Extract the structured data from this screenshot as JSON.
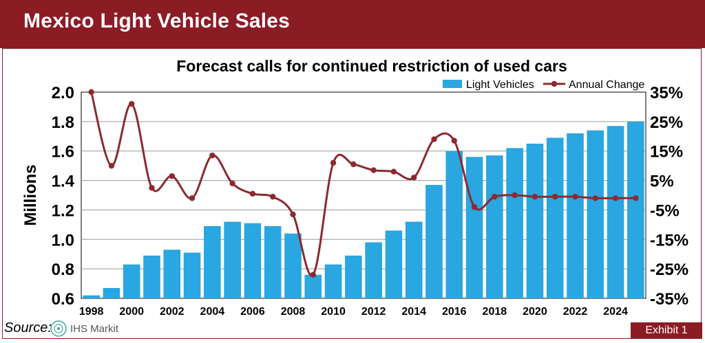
{
  "header": {
    "title": "Mexico Light Vehicle Sales"
  },
  "footer": {
    "source_label": "Source:",
    "logo_text": "IHS Markit",
    "exhibit_label": "Exhibit 1"
  },
  "colors": {
    "brand": "#8c1c24",
    "bars": "#2aa6e0",
    "line": "#8c2a30"
  },
  "chart_data": {
    "type": "bar",
    "title": "Forecast calls for continued restriction of used cars",
    "ylabel": "Millions",
    "xlabel": "",
    "x": [
      1998,
      1999,
      2000,
      2001,
      2002,
      2003,
      2004,
      2005,
      2006,
      2007,
      2008,
      2009,
      2010,
      2011,
      2012,
      2013,
      2014,
      2015,
      2016,
      2017,
      2018,
      2019,
      2020,
      2021,
      2022,
      2023,
      2024,
      2025
    ],
    "x_tick_labels": [
      "1998",
      "2000",
      "2002",
      "2004",
      "2006",
      "2008",
      "2010",
      "2012",
      "2014",
      "2016",
      "2018",
      "2020",
      "2022",
      "2024"
    ],
    "ylim": [
      0.6,
      2.0
    ],
    "y_tick_labels": [
      "0.6",
      "0.8",
      "1.0",
      "1.2",
      "1.4",
      "1.6",
      "1.8",
      "2.0"
    ],
    "y2lim": [
      -35,
      35
    ],
    "y2_tick_labels": [
      "-35%",
      "-25%",
      "-15%",
      "-5%",
      "5%",
      "15%",
      "25%",
      "35%"
    ],
    "grid": true,
    "legend_position": "top-right",
    "series": [
      {
        "name": "Light Vehicles",
        "kind": "bar",
        "axis": "left",
        "values": [
          0.62,
          0.67,
          0.83,
          0.89,
          0.93,
          0.91,
          1.09,
          1.12,
          1.11,
          1.09,
          1.04,
          0.76,
          0.83,
          0.89,
          0.98,
          1.06,
          1.12,
          1.37,
          1.6,
          1.56,
          1.57,
          1.62,
          1.65,
          1.69,
          1.72,
          1.74,
          1.77,
          1.8
        ]
      },
      {
        "name": "Annual Change",
        "kind": "line",
        "axis": "right",
        "values": [
          35.0,
          10.0,
          31.0,
          2.5,
          6.5,
          -1.0,
          13.5,
          4.0,
          0.5,
          -0.5,
          -6.5,
          -27.0,
          11.0,
          10.5,
          8.5,
          8.0,
          6.0,
          19.0,
          18.5,
          -4.0,
          -0.5,
          0.0,
          -0.5,
          -0.5,
          -0.5,
          -1.0,
          -1.0,
          -1.0
        ]
      }
    ]
  }
}
